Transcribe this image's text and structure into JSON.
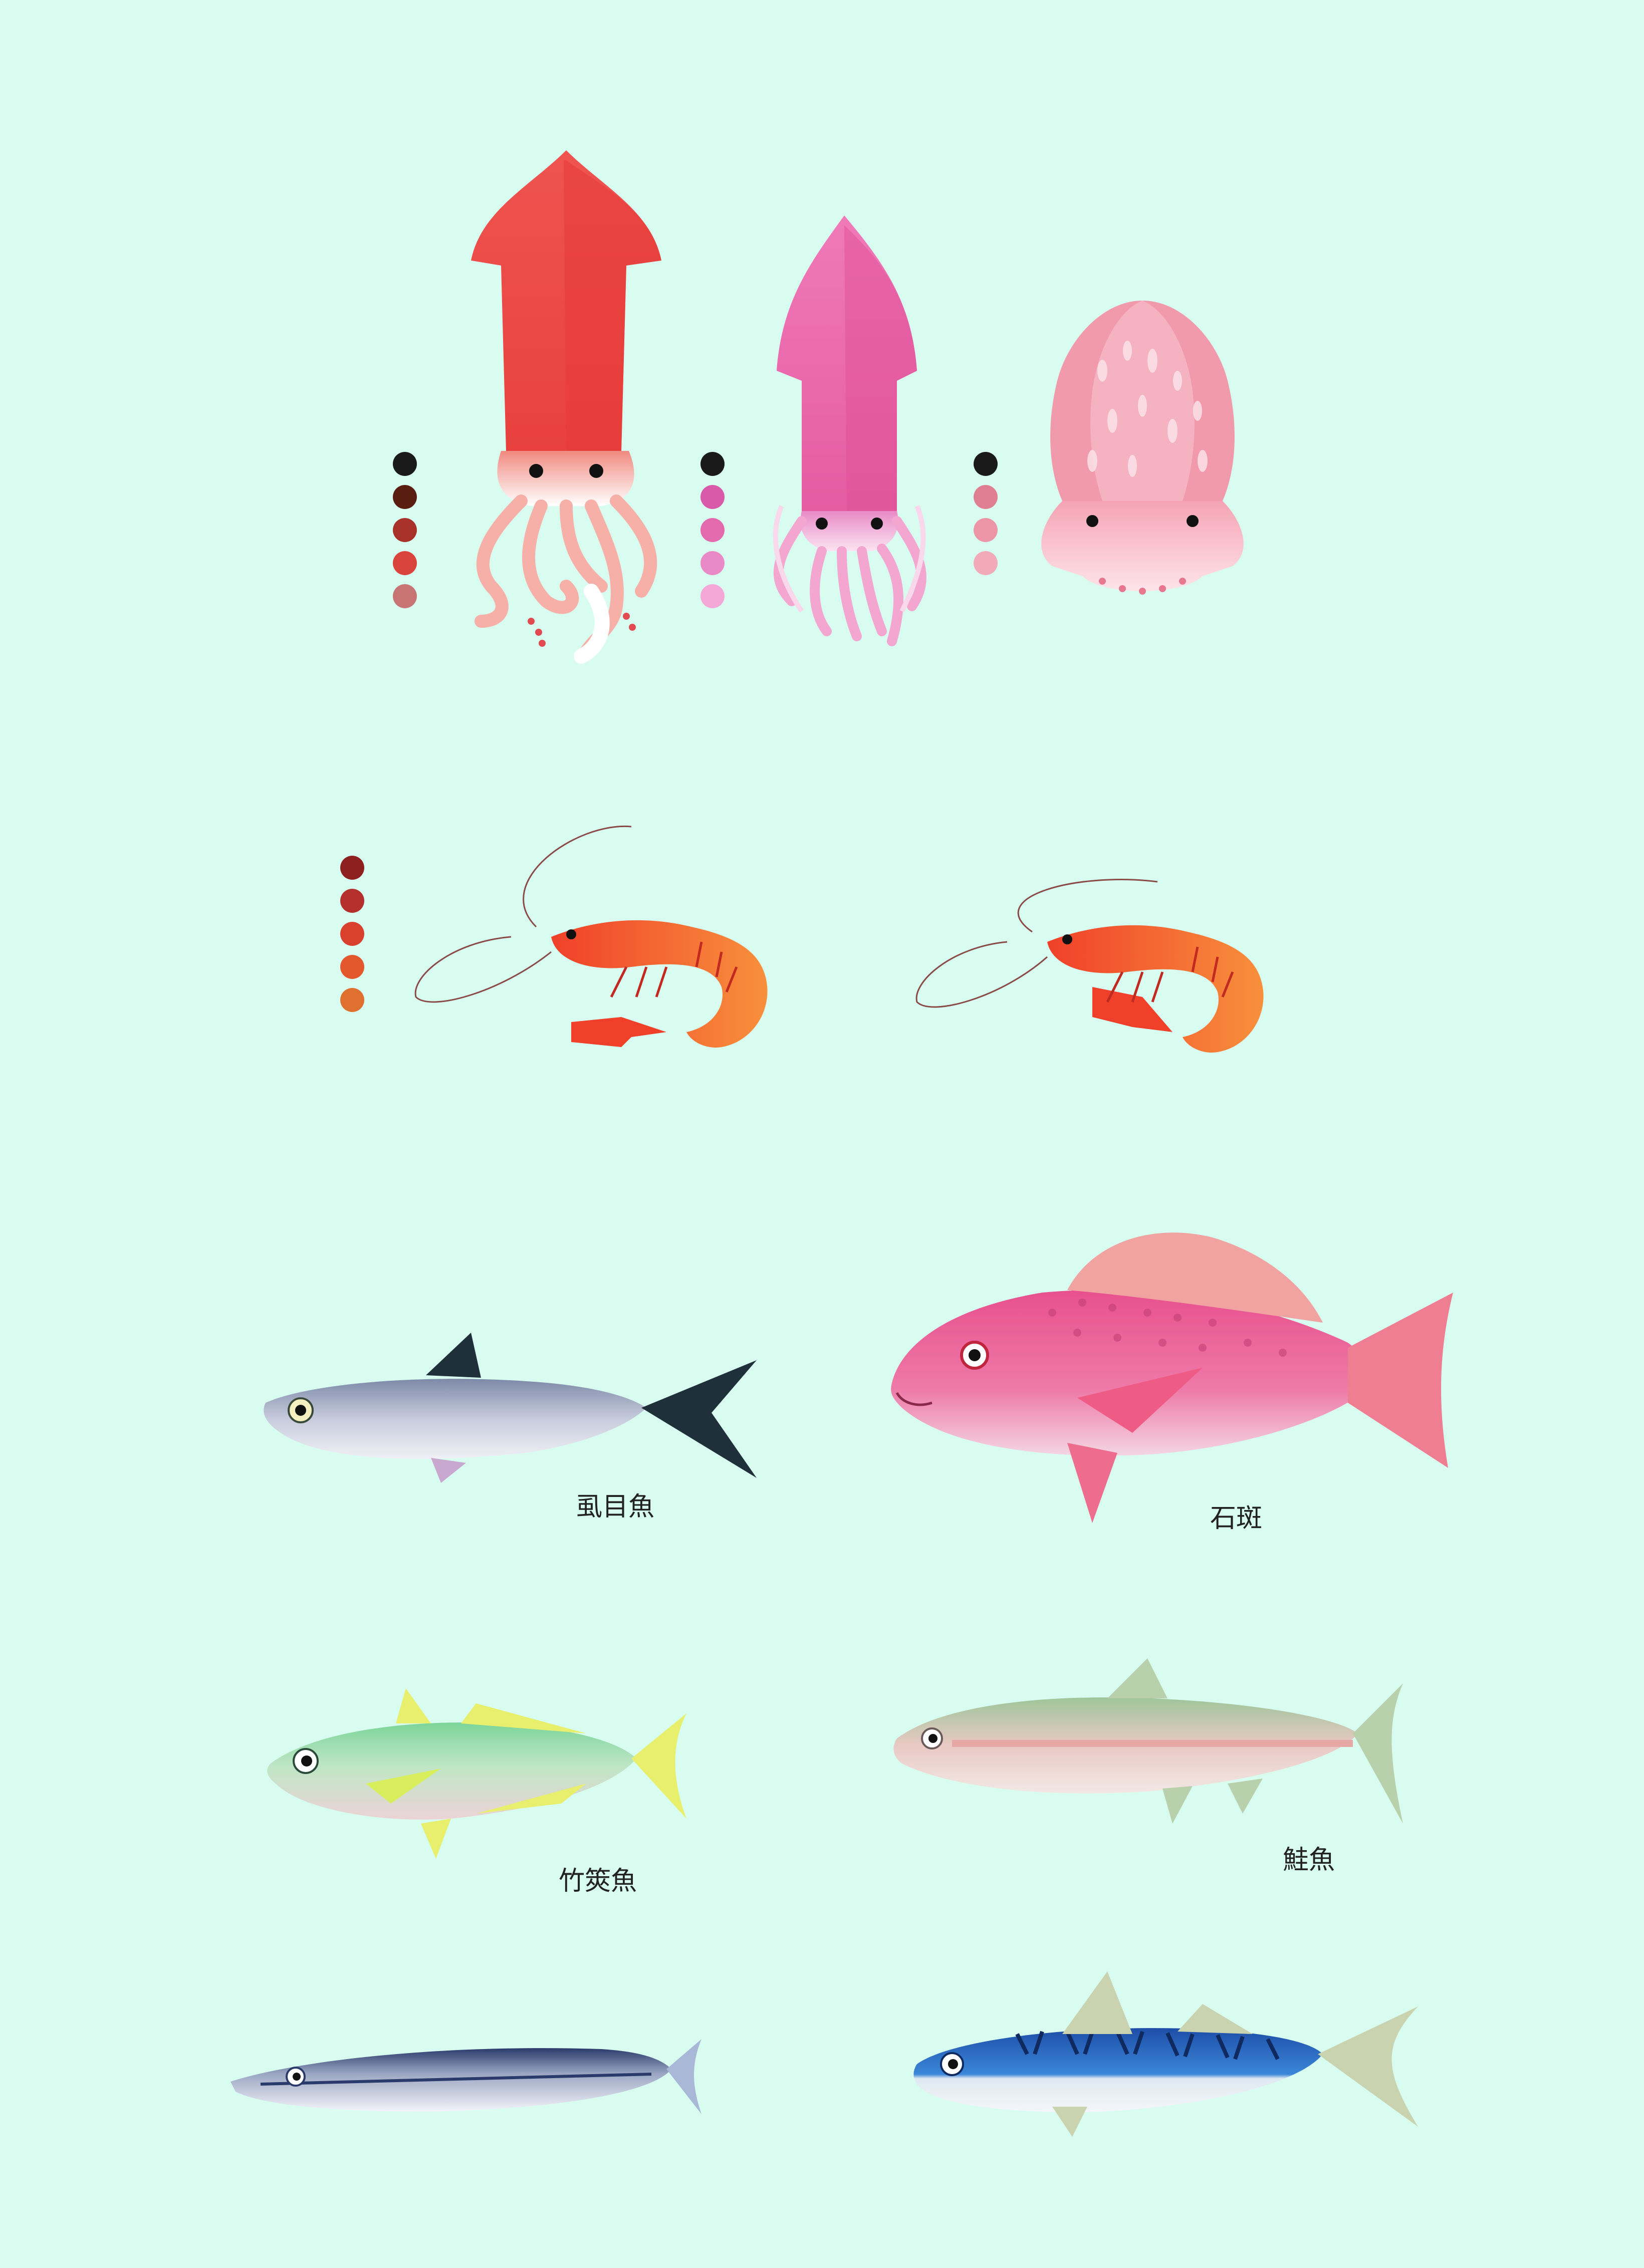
{
  "swatch_sets": {
    "squid_red": [
      "#1a1a1a",
      "#5a1e10",
      "#a8322a",
      "#d9443c",
      "#c97474"
    ],
    "squid_pink": [
      "#1a1a1a",
      "#d85aa8",
      "#e46aae",
      "#e98ac6",
      "#f4a8d8"
    ],
    "cuttlefish": [
      "#1a1a1a",
      "#e07e92",
      "#ec95a6",
      "#f2a9b8"
    ],
    "shrimp": [
      "#8e2020",
      "#b3302c",
      "#d9402e",
      "#e4582e",
      "#e07030"
    ]
  },
  "labels": {
    "milkfish": "虱目魚",
    "grouper": "石斑",
    "horse_mackerel": "竹筴魚",
    "salmon": "鮭魚"
  },
  "colors": {
    "background": "#d9fcf0"
  }
}
